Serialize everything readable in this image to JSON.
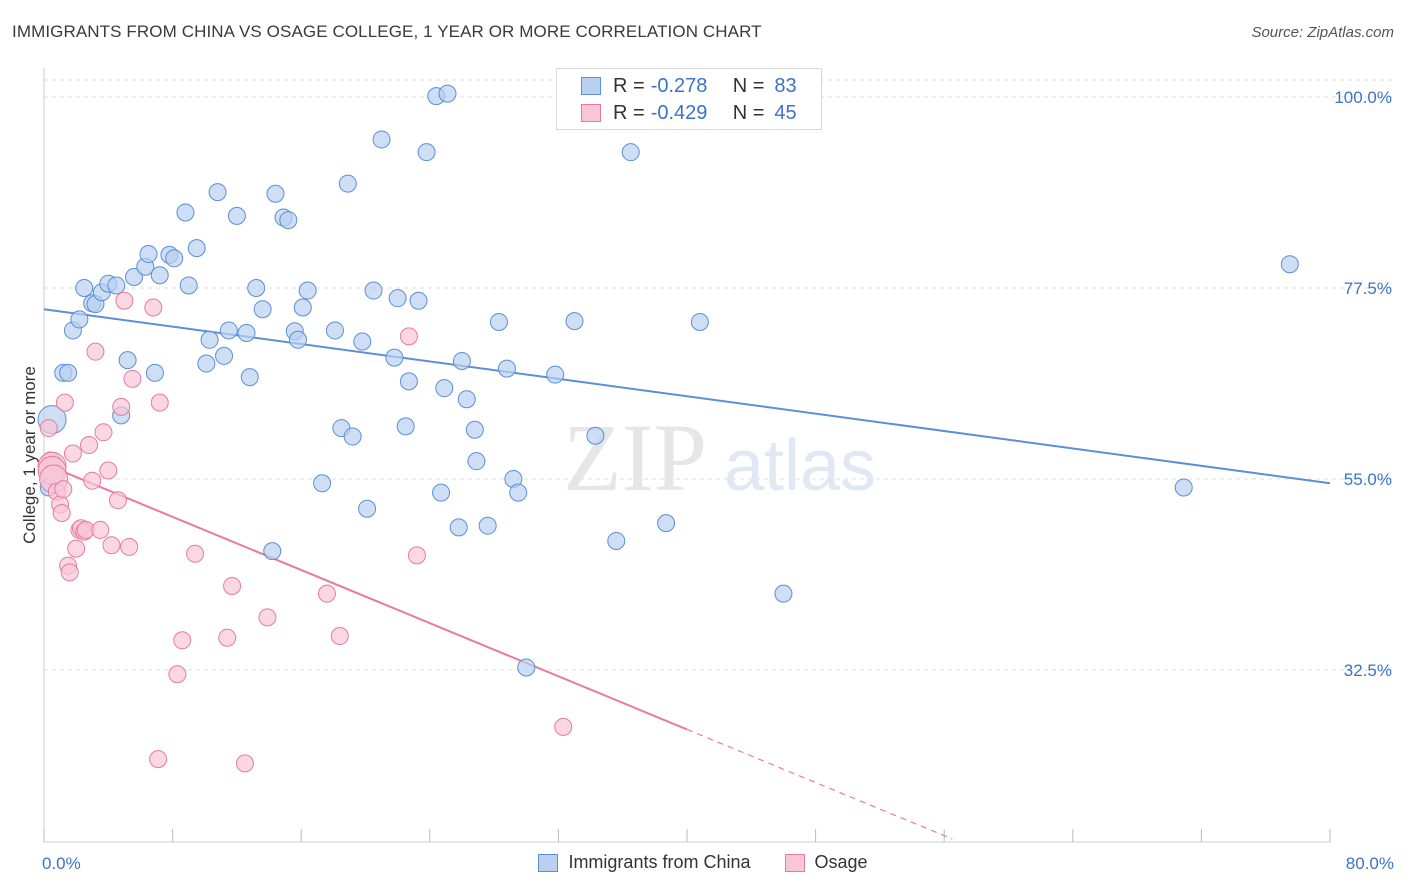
{
  "title": "IMMIGRANTS FROM CHINA VS OSAGE COLLEGE, 1 YEAR OR MORE CORRELATION CHART",
  "source": "Source: ZipAtlas.com",
  "watermark": {
    "zip": "ZIP",
    "atlas": "atlas"
  },
  "legend_top": {
    "rows": [
      {
        "r_label": "R =",
        "r_value": "-0.278",
        "n_label": "N =",
        "n_value": "83",
        "color": "#5b8fd8",
        "fill": "#b9d0f0"
      },
      {
        "r_label": "R =",
        "r_value": "-0.429",
        "n_label": "N =",
        "n_value": "45",
        "color": "#e87aa0",
        "fill": "#f8c6d6"
      }
    ]
  },
  "y_ticks": [
    "100.0%",
    "77.5%",
    "55.0%",
    "32.5%"
  ],
  "x_ticks": [
    "0.0%",
    "80.0%"
  ],
  "chart_data": {
    "type": "scatter",
    "title": "IMMIGRANTS FROM CHINA VS OSAGE COLLEGE, 1 YEAR OR MORE CORRELATION CHART",
    "xlabel": "",
    "ylabel": "College, 1 year or more",
    "xlim": [
      0,
      80
    ],
    "ylim": [
      10,
      100
    ],
    "x_unit": "%",
    "y_unit": "%",
    "grid": true,
    "legend_position": "bottom",
    "series": [
      {
        "name": "Immigrants from China",
        "color": "#5b8fd8",
        "fill": "#b9d0f0",
        "trend": {
          "x": [
            0,
            80
          ],
          "y": [
            75.0,
            54.5
          ],
          "style": "solid"
        },
        "points": [
          [
            0.3,
            54.0
          ],
          [
            0.5,
            62.0
          ],
          [
            1.2,
            67.5
          ],
          [
            1.5,
            67.5
          ],
          [
            1.8,
            72.5
          ],
          [
            2.2,
            73.8
          ],
          [
            2.5,
            77.5
          ],
          [
            3.0,
            75.7
          ],
          [
            3.2,
            75.6
          ],
          [
            3.6,
            77.0
          ],
          [
            4.0,
            78.0
          ],
          [
            4.5,
            77.8
          ],
          [
            4.8,
            62.5
          ],
          [
            5.2,
            69.0
          ],
          [
            5.6,
            78.8
          ],
          [
            6.3,
            80.0
          ],
          [
            6.5,
            81.5
          ],
          [
            6.9,
            67.5
          ],
          [
            7.2,
            79.0
          ],
          [
            7.8,
            81.4
          ],
          [
            8.1,
            81.0
          ],
          [
            8.8,
            86.4
          ],
          [
            9.0,
            77.8
          ],
          [
            9.5,
            82.2
          ],
          [
            10.1,
            68.6
          ],
          [
            10.3,
            71.4
          ],
          [
            10.8,
            88.8
          ],
          [
            11.2,
            69.5
          ],
          [
            11.5,
            72.5
          ],
          [
            12.0,
            86.0
          ],
          [
            12.6,
            72.2
          ],
          [
            12.8,
            67.0
          ],
          [
            13.2,
            77.5
          ],
          [
            13.6,
            75.0
          ],
          [
            14.2,
            46.5
          ],
          [
            14.4,
            88.6
          ],
          [
            14.9,
            85.8
          ],
          [
            15.2,
            85.5
          ],
          [
            15.6,
            72.4
          ],
          [
            15.8,
            71.4
          ],
          [
            16.1,
            75.2
          ],
          [
            16.4,
            77.2
          ],
          [
            17.3,
            54.5
          ],
          [
            18.1,
            72.5
          ],
          [
            18.5,
            61.0
          ],
          [
            18.9,
            89.8
          ],
          [
            19.2,
            60.0
          ],
          [
            19.8,
            71.2
          ],
          [
            20.1,
            51.5
          ],
          [
            20.5,
            77.2
          ],
          [
            21.0,
            95.0
          ],
          [
            21.8,
            69.3
          ],
          [
            22.0,
            76.3
          ],
          [
            22.5,
            61.2
          ],
          [
            22.7,
            66.5
          ],
          [
            23.3,
            76.0
          ],
          [
            23.8,
            93.5
          ],
          [
            24.7,
            53.4
          ],
          [
            24.9,
            65.7
          ],
          [
            25.8,
            49.3
          ],
          [
            26.0,
            68.9
          ],
          [
            26.3,
            64.4
          ],
          [
            26.8,
            60.8
          ],
          [
            26.9,
            57.1
          ],
          [
            27.6,
            49.5
          ],
          [
            28.3,
            73.5
          ],
          [
            28.8,
            68.0
          ],
          [
            29.2,
            55.0
          ],
          [
            29.5,
            53.4
          ],
          [
            30.0,
            32.8
          ],
          [
            31.8,
            67.3
          ],
          [
            33.0,
            73.6
          ],
          [
            34.3,
            60.1
          ],
          [
            35.6,
            47.7
          ],
          [
            36.5,
            93.5
          ],
          [
            38.7,
            49.8
          ],
          [
            40.8,
            73.5
          ],
          [
            46.0,
            41.5
          ],
          [
            70.9,
            54.0
          ],
          [
            77.5,
            80.3
          ],
          [
            24.4,
            100.1
          ],
          [
            25.1,
            100.4
          ],
          [
            0.6,
            56.8
          ]
        ]
      },
      {
        "name": "Osage",
        "color": "#e87aa0",
        "fill": "#f8c6d6",
        "trend": {
          "x": [
            0,
            40
          ],
          "y": [
            56.8,
            25.5
          ],
          "style": "solid",
          "extend_x": [
            40,
            56.5
          ],
          "extend_y": [
            25.5,
            12.6
          ],
          "extend_style": "dashed"
        },
        "points": [
          [
            0.3,
            61.0
          ],
          [
            0.4,
            57.2
          ],
          [
            0.5,
            56.5
          ],
          [
            0.5,
            56.0
          ],
          [
            0.6,
            55.0
          ],
          [
            0.8,
            53.5
          ],
          [
            1.0,
            52.0
          ],
          [
            1.1,
            51.0
          ],
          [
            1.2,
            53.8
          ],
          [
            1.3,
            64.0
          ],
          [
            1.5,
            44.8
          ],
          [
            1.8,
            58.0
          ],
          [
            2.0,
            46.8
          ],
          [
            2.2,
            49.0
          ],
          [
            2.3,
            49.2
          ],
          [
            2.5,
            48.8
          ],
          [
            2.6,
            49.0
          ],
          [
            2.8,
            59.0
          ],
          [
            3.0,
            54.8
          ],
          [
            3.2,
            70.0
          ],
          [
            3.5,
            49.0
          ],
          [
            3.7,
            60.5
          ],
          [
            4.0,
            56.0
          ],
          [
            4.2,
            47.2
          ],
          [
            4.6,
            52.5
          ],
          [
            4.8,
            63.5
          ],
          [
            5.0,
            76.0
          ],
          [
            5.3,
            47.0
          ],
          [
            5.5,
            66.8
          ],
          [
            6.8,
            75.2
          ],
          [
            7.1,
            22.0
          ],
          [
            7.2,
            64.0
          ],
          [
            8.3,
            32.0
          ],
          [
            8.6,
            36.0
          ],
          [
            9.4,
            46.2
          ],
          [
            11.4,
            36.3
          ],
          [
            11.7,
            42.4
          ],
          [
            12.5,
            21.5
          ],
          [
            13.9,
            38.7
          ],
          [
            17.6,
            41.5
          ],
          [
            18.4,
            36.5
          ],
          [
            22.7,
            71.8
          ],
          [
            23.2,
            46.0
          ],
          [
            32.3,
            25.8
          ],
          [
            1.6,
            44.0
          ]
        ]
      }
    ]
  }
}
